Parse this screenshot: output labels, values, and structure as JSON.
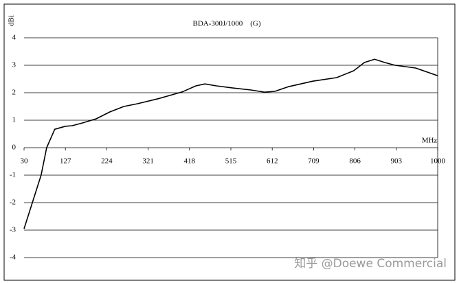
{
  "chart_data": {
    "type": "line",
    "title": "BDA-300J/1000　(G)",
    "y_label": "dBi",
    "x_label": "MHz",
    "watermark": "知乎 @Doewe Commercial",
    "xlim": [
      30,
      1000
    ],
    "xticks": [
      30,
      127,
      224,
      321,
      418,
      515,
      612,
      709,
      806,
      903,
      1000
    ],
    "ylim": [
      -4,
      4
    ],
    "yticks": [
      -4,
      -3,
      -2,
      -1,
      0,
      1,
      2,
      3,
      4
    ],
    "grid": true,
    "x": [
      30,
      70,
      83,
      102,
      127,
      143,
      167,
      199,
      231,
      264,
      296,
      344,
      401,
      433,
      454,
      481,
      521,
      562,
      594,
      618,
      650,
      707,
      763,
      803,
      828,
      852,
      876,
      900,
      948,
      1000
    ],
    "series": [
      {
        "name": "dBi",
        "color": "#000000",
        "values": [
          -2.95,
          -1.0,
          0,
          0.67,
          0.78,
          0.8,
          0.9,
          1.05,
          1.3,
          1.5,
          1.6,
          1.78,
          2.03,
          2.25,
          2.32,
          2.25,
          2.17,
          2.1,
          2.02,
          2.05,
          2.22,
          2.42,
          2.55,
          2.8,
          3.1,
          3.22,
          3.1,
          3.0,
          2.9,
          2.62
        ]
      }
    ]
  }
}
